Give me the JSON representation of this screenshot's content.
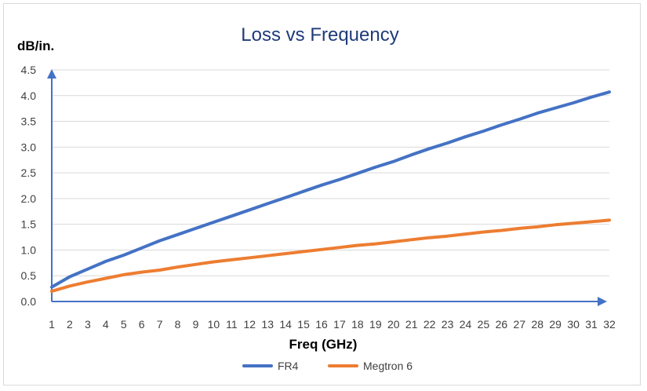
{
  "chart_data": {
    "type": "line",
    "title": "Loss vs Frequency",
    "xlabel": "Freq (GHz)",
    "ylabel": "dB/in.",
    "categories": [
      "1",
      "2",
      "3",
      "4",
      "5",
      "6",
      "7",
      "8",
      "9",
      "10",
      "11",
      "12",
      "13",
      "14",
      "15",
      "16",
      "17",
      "18",
      "19",
      "20",
      "21",
      "22",
      "23",
      "24",
      "25",
      "26",
      "27",
      "28",
      "29",
      "30",
      "31",
      "32"
    ],
    "yticks": [
      "0.0",
      "0.5",
      "1.0",
      "1.5",
      "2.0",
      "2.5",
      "3.0",
      "3.5",
      "4.0",
      "4.5"
    ],
    "ylim": [
      0,
      4.5
    ],
    "grid": true,
    "legend_position": "bottom",
    "series": [
      {
        "name": "FR4",
        "color": "#4472c4",
        "values": [
          0.28,
          0.48,
          0.63,
          0.78,
          0.9,
          1.04,
          1.18,
          1.3,
          1.42,
          1.54,
          1.66,
          1.78,
          1.9,
          2.02,
          2.14,
          2.26,
          2.37,
          2.49,
          2.61,
          2.72,
          2.85,
          2.97,
          3.08,
          3.2,
          3.31,
          3.43,
          3.54,
          3.66,
          3.76,
          3.86,
          3.97,
          4.07
        ]
      },
      {
        "name": "Megtron 6",
        "color": "#ed7d31",
        "values": [
          0.2,
          0.3,
          0.38,
          0.45,
          0.52,
          0.57,
          0.61,
          0.67,
          0.72,
          0.77,
          0.81,
          0.85,
          0.89,
          0.93,
          0.97,
          1.01,
          1.05,
          1.09,
          1.12,
          1.16,
          1.2,
          1.24,
          1.27,
          1.31,
          1.35,
          1.38,
          1.42,
          1.45,
          1.49,
          1.52,
          1.55,
          1.58
        ]
      }
    ]
  }
}
